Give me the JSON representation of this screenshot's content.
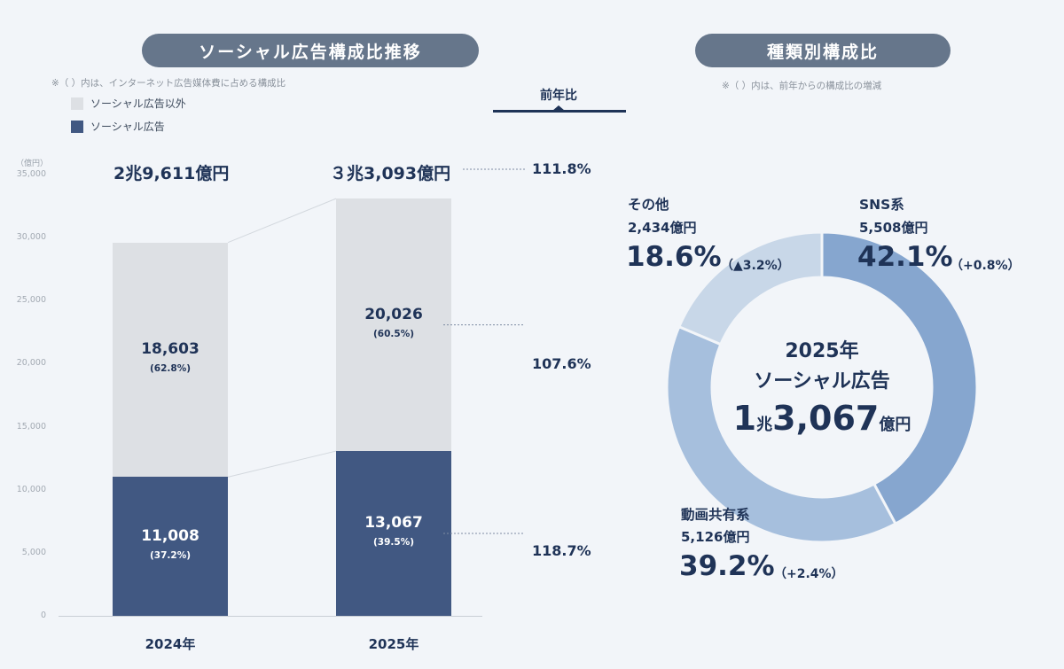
{
  "left_panel": {
    "title": "ソーシャル広告構成比推移",
    "note": "※（ ）内は、インターネット広告媒体費に占める構成比",
    "legend": [
      {
        "label": "ソーシャル広告以外",
        "color": "#dde0e4"
      },
      {
        "label": "ソーシャル広告",
        "color": "#415882"
      }
    ],
    "y_unit": "（億円）",
    "yoy_header": "前年比"
  },
  "right_panel": {
    "title": "種類別構成比",
    "note": "※（ ）内は、前年からの構成比の増減",
    "center": {
      "year": "2025年",
      "label": "ソーシャル広告",
      "amount_big1": "1",
      "unit_small1": "兆",
      "amount_big2": "3,067",
      "unit_small2": "億円"
    }
  },
  "chart_data": [
    {
      "type": "bar",
      "stacked": true,
      "title": "ソーシャル広告構成比推移",
      "categories": [
        "2024年",
        "2025年"
      ],
      "ylim": [
        0,
        35000
      ],
      "yticks": [
        "0",
        "5,000",
        "10,000",
        "15,000",
        "20,000",
        "25,000",
        "30,000",
        "35,000"
      ],
      "ytick_values": [
        0,
        5000,
        10000,
        15000,
        20000,
        25000,
        30000,
        35000
      ],
      "series": [
        {
          "name": "ソーシャル広告",
          "values": [
            11008,
            13067
          ],
          "labels": [
            "11,008",
            "13,067"
          ],
          "pct_labels": [
            "(37.2%)",
            "(39.5%)"
          ],
          "color": "#415882",
          "label_color": "#ffffff",
          "yoy": "118.7%"
        },
        {
          "name": "ソーシャル広告以外",
          "values": [
            18603,
            20026
          ],
          "labels": [
            "18,603",
            "20,026"
          ],
          "pct_labels": [
            "(62.8%)",
            "(60.5%)"
          ],
          "color": "#dde0e4",
          "label_color": "#1f3357",
          "yoy": "107.6%"
        }
      ],
      "totals": [
        "2兆9,611億円",
        "３兆3,093億円"
      ],
      "total_yoy": "111.8%"
    },
    {
      "type": "pie",
      "donut": true,
      "title": "種類別構成比",
      "slices": [
        {
          "name": "SNS系",
          "amount": "5,508億円",
          "value": 42.1,
          "pct": "42.1%",
          "change": "（+0.8%）",
          "color": "#86a6cf"
        },
        {
          "name": "動画共有系",
          "amount": "5,126億円",
          "value": 39.2,
          "pct": "39.2%",
          "change": "（+2.4%）",
          "color": "#a6bfdd"
        },
        {
          "name": "その他",
          "amount": "2,434億円",
          "value": 18.6,
          "pct": "18.6%",
          "change": "（▲3.2%）",
          "color": "#c8d7e8"
        }
      ]
    }
  ]
}
